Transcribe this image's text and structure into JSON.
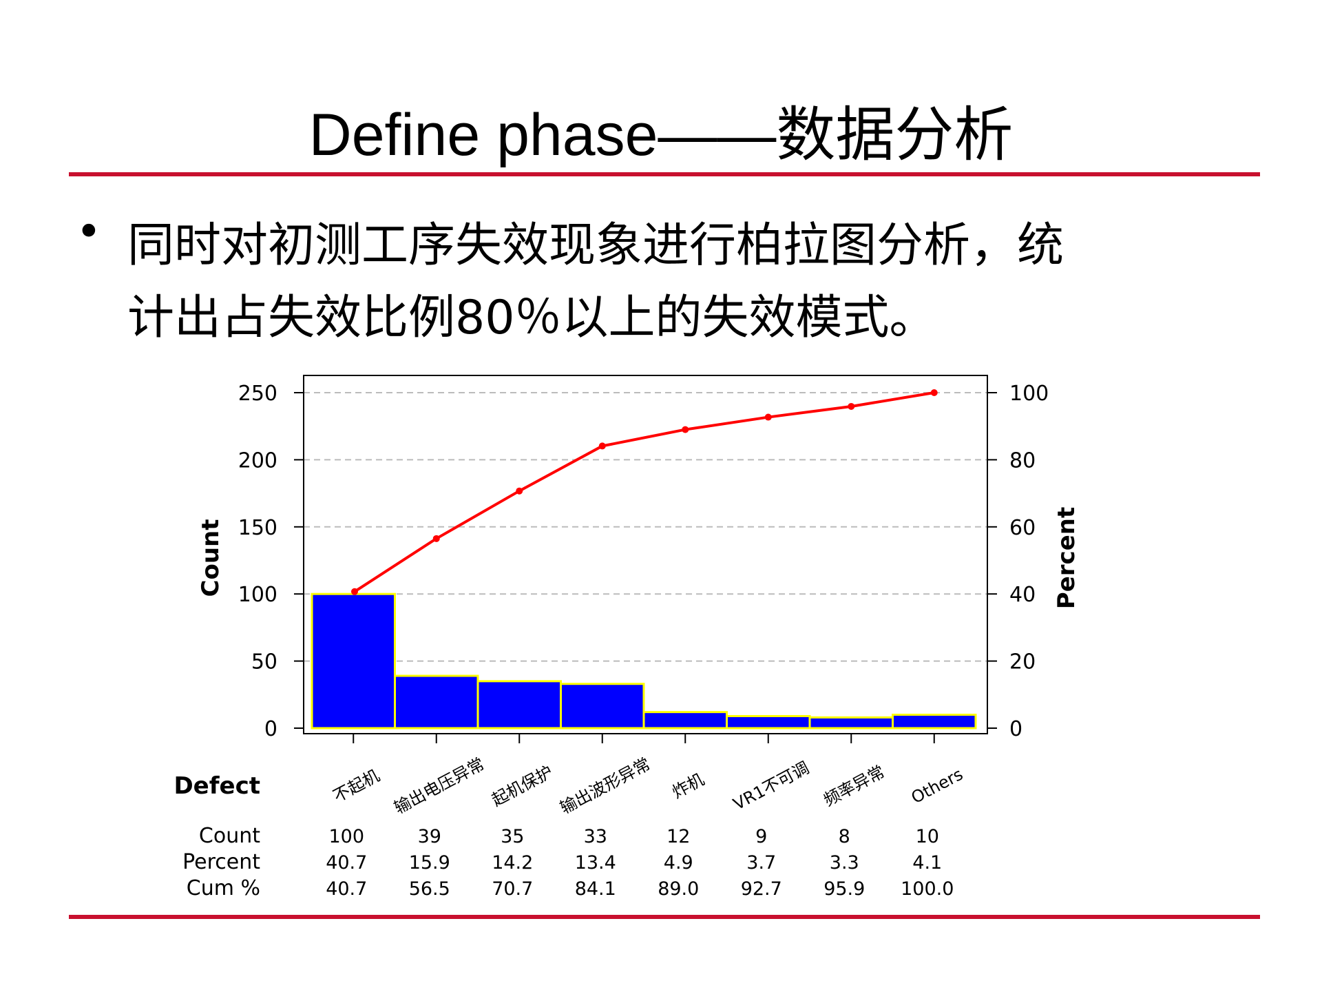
{
  "slide": {
    "title": "Define phase——数据分析",
    "bullet_line_1": "同时对初测工序失效现象进行柏拉图分析，统",
    "bullet_line_2": "计出占失效比例80％以上的失效模式。",
    "accent_color": "#c8102e"
  },
  "chart_data": {
    "type": "bar",
    "title": "",
    "categories": [
      "不起机",
      "输出电压异常",
      "起机保护",
      "输出波形异常",
      "炸机",
      "VR1不可调",
      "频率异常",
      "Others"
    ],
    "series": [
      {
        "name": "Count",
        "values": [
          100,
          39,
          35,
          33,
          12,
          9,
          8,
          10
        ]
      },
      {
        "name": "Cum %",
        "values": [
          40.7,
          56.5,
          70.7,
          84.1,
          89.0,
          92.7,
          95.9,
          100.0
        ]
      }
    ],
    "ylabel": "Count",
    "y2label": "Percent",
    "ylim": [
      0,
      250
    ],
    "y2lim": [
      0,
      100
    ],
    "yticks": [
      "0",
      "50",
      "100",
      "150",
      "200",
      "250"
    ],
    "y2ticks": [
      "0",
      "20",
      "40",
      "60",
      "80",
      "100"
    ],
    "grid": true,
    "bar_color": "#0000ff",
    "bar_edge_color": "#ffff00",
    "line_color": "#ff0000",
    "table": {
      "header": "Defect",
      "row_labels": [
        "Count",
        "Percent",
        "Cum %"
      ],
      "count": [
        "100",
        "39",
        "35",
        "33",
        "12",
        "9",
        "8",
        "10"
      ],
      "percent": [
        "40.7",
        "15.9",
        "14.2",
        "13.4",
        "4.9",
        "3.7",
        "3.3",
        "4.1"
      ],
      "cum": [
        "40.7",
        "56.5",
        "70.7",
        "84.1",
        "89.0",
        "92.7",
        "95.9",
        "100.0"
      ]
    }
  }
}
